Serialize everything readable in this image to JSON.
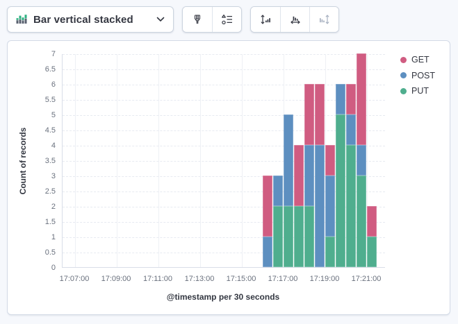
{
  "toolbar": {
    "chart_type": {
      "label": "Bar vertical stacked",
      "icon": "bar-vertical-stacked-icon",
      "chevron": "chevron-down-icon"
    },
    "style_group": [
      {
        "icon": "paint-brush-icon",
        "name": "appearance-button",
        "disabled": false
      },
      {
        "icon": "legend-settings-icon",
        "name": "legend-settings-button",
        "disabled": false
      }
    ],
    "axis_group": [
      {
        "icon": "left-axis-icon",
        "name": "left-axis-button",
        "disabled": false
      },
      {
        "icon": "bottom-axis-icon",
        "name": "bottom-axis-button",
        "disabled": false
      },
      {
        "icon": "right-axis-icon",
        "name": "right-axis-button",
        "disabled": true
      }
    ]
  },
  "colors": {
    "page_bg": "#f6f8fc",
    "panel_border": "#d3dae6",
    "icon_green": "#2fb182",
    "icon_gray": "#5a6270",
    "disabled_icon": "#a8b1c1"
  },
  "chart_data": {
    "type": "bar",
    "stacked": true,
    "orientation": "vertical",
    "title": "",
    "xlabel": "@timestamp per 30 seconds",
    "ylabel": "Count of records",
    "ylim": [
      0,
      7
    ],
    "y_tick_step": 0.5,
    "grid": true,
    "legend_position": "right",
    "x_start": "17:07:00",
    "seconds_per_bucket": 30,
    "x_axis_ticks": [
      "17:07:00",
      "17:09:00",
      "17:11:00",
      "17:13:00",
      "17:15:00",
      "17:17:00",
      "17:19:00",
      "17:21:00"
    ],
    "categories": [
      "17:16:00",
      "17:16:30",
      "17:17:00",
      "17:17:30",
      "17:18:00",
      "17:18:30",
      "17:19:00",
      "17:19:30",
      "17:20:00",
      "17:20:30",
      "17:21:00"
    ],
    "series": [
      {
        "name": "GET",
        "color": "#d05c81",
        "values": [
          2,
          0,
          0,
          2,
          2,
          2,
          1,
          0,
          1,
          3,
          1
        ]
      },
      {
        "name": "POST",
        "color": "#5d8fc0",
        "values": [
          1,
          1,
          3,
          0,
          2,
          4,
          2,
          1,
          1,
          1,
          0
        ]
      },
      {
        "name": "PUT",
        "color": "#4fae8e",
        "values": [
          0,
          2,
          2,
          2,
          2,
          0,
          1,
          5,
          4,
          3,
          1
        ]
      }
    ],
    "stack_order_bottom_to_top": [
      "PUT",
      "POST",
      "GET"
    ],
    "totals": [
      3,
      3,
      5,
      4,
      6,
      6,
      4,
      6,
      6,
      7,
      2
    ]
  }
}
